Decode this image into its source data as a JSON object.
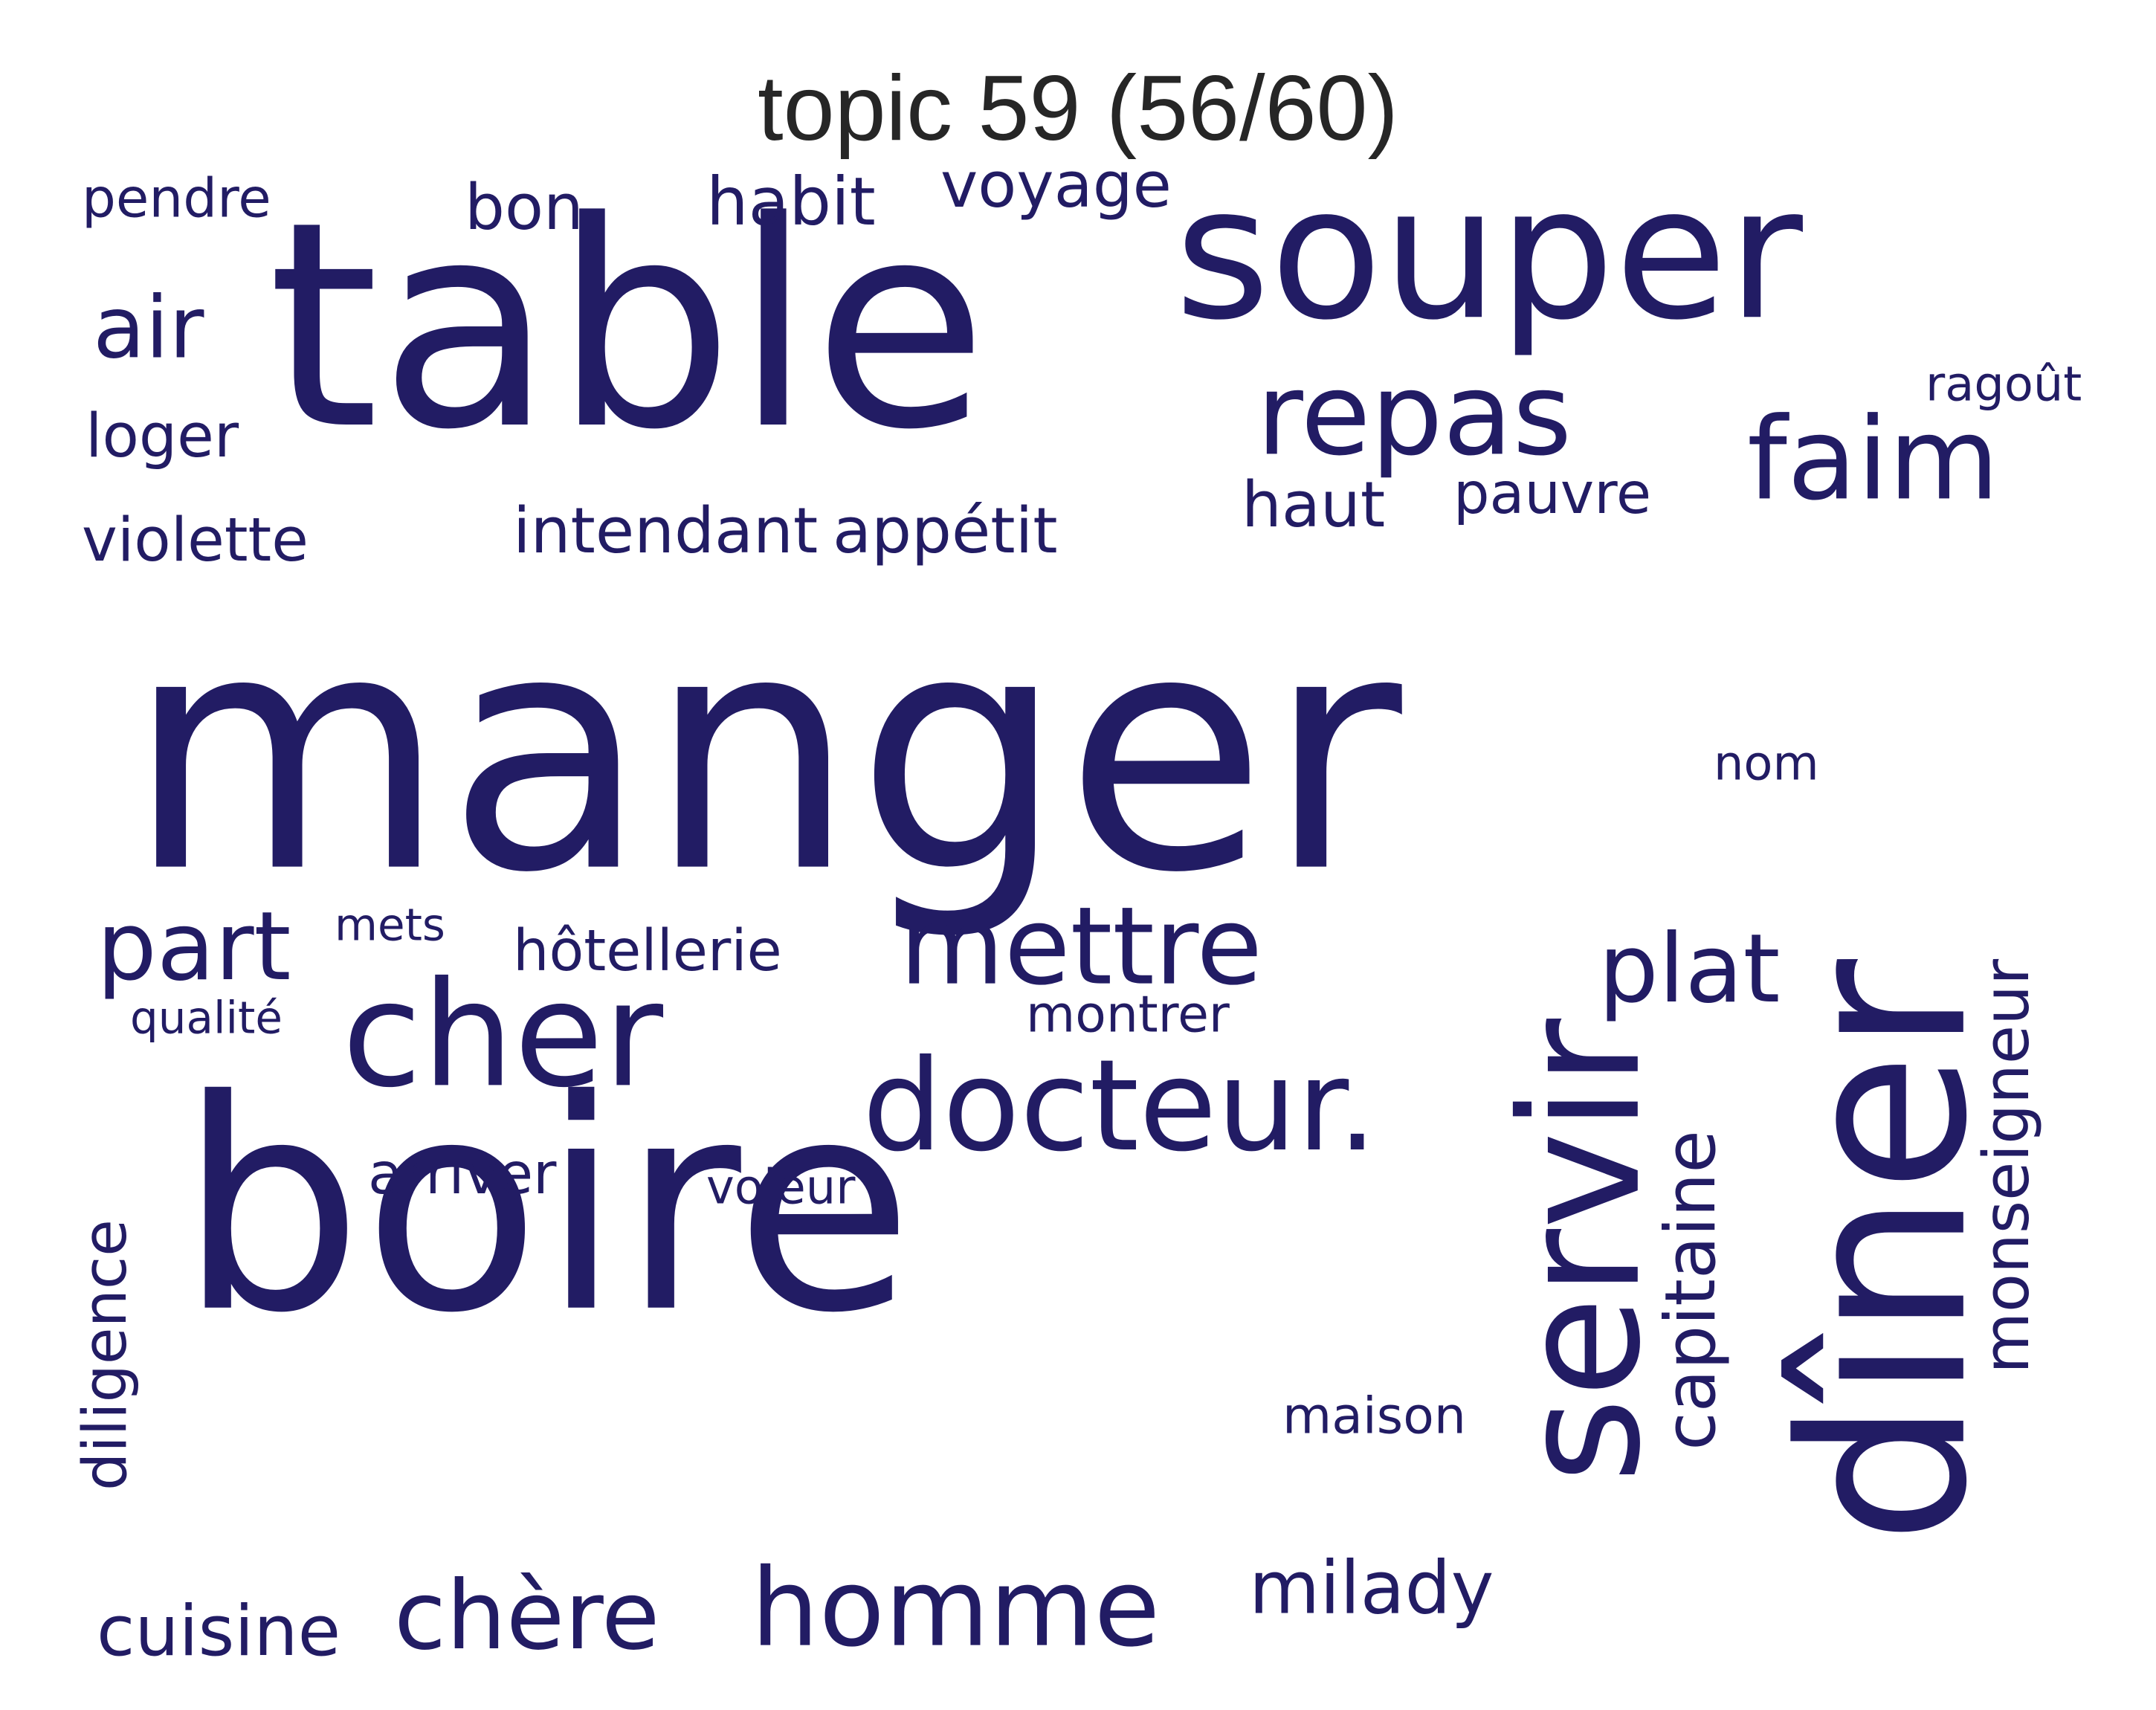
{
  "title": "topic 59 (56/60)",
  "word_color": "#221c64",
  "words": [
    {
      "text": "manger",
      "weight": 1.0
    },
    {
      "text": "boire",
      "weight": 0.91
    },
    {
      "text": "table",
      "weight": 0.56
    },
    {
      "text": "souper",
      "weight": 0.45
    },
    {
      "text": "dîner",
      "weight": 0.43
    },
    {
      "text": "servir",
      "weight": 0.31
    },
    {
      "text": "cher",
      "weight": 0.25
    },
    {
      "text": "docteur.",
      "weight": 0.21
    },
    {
      "text": "repas",
      "weight": 0.2
    },
    {
      "text": "faim",
      "weight": 0.2
    },
    {
      "text": "mettre",
      "weight": 0.2
    },
    {
      "text": "homme",
      "weight": 0.2
    },
    {
      "text": "chère",
      "weight": 0.19
    },
    {
      "text": "part",
      "weight": 0.18
    },
    {
      "text": "plat",
      "weight": 0.17
    },
    {
      "text": "air",
      "weight": 0.15
    },
    {
      "text": "milady",
      "weight": 0.14
    },
    {
      "text": "cuisine",
      "weight": 0.13
    },
    {
      "text": "habit",
      "weight": 0.13
    },
    {
      "text": "capitaine",
      "weight": 0.13
    },
    {
      "text": "monseigneur",
      "weight": 0.12
    },
    {
      "text": "bon",
      "weight": 0.12
    },
    {
      "text": "voyage",
      "weight": 0.12
    },
    {
      "text": "intendant",
      "weight": 0.12
    },
    {
      "text": "appétit",
      "weight": 0.12
    },
    {
      "text": "haut",
      "weight": 0.12
    },
    {
      "text": "pauvre",
      "weight": 0.11
    },
    {
      "text": "violette",
      "weight": 0.11
    },
    {
      "text": "hôtellerie",
      "weight": 0.11
    },
    {
      "text": "diligence",
      "weight": 0.11
    },
    {
      "text": "loger",
      "weight": 0.11
    },
    {
      "text": "arriver",
      "weight": 0.11
    },
    {
      "text": "montrer",
      "weight": 0.1
    },
    {
      "text": "maison",
      "weight": 0.1
    },
    {
      "text": "pendre",
      "weight": 0.1
    },
    {
      "text": "nom",
      "weight": 0.09
    },
    {
      "text": "ragoût",
      "weight": 0.09
    },
    {
      "text": "voleur",
      "weight": 0.09
    },
    {
      "text": "mets",
      "weight": 0.09
    },
    {
      "text": "qualité",
      "weight": 0.08
    }
  ]
}
